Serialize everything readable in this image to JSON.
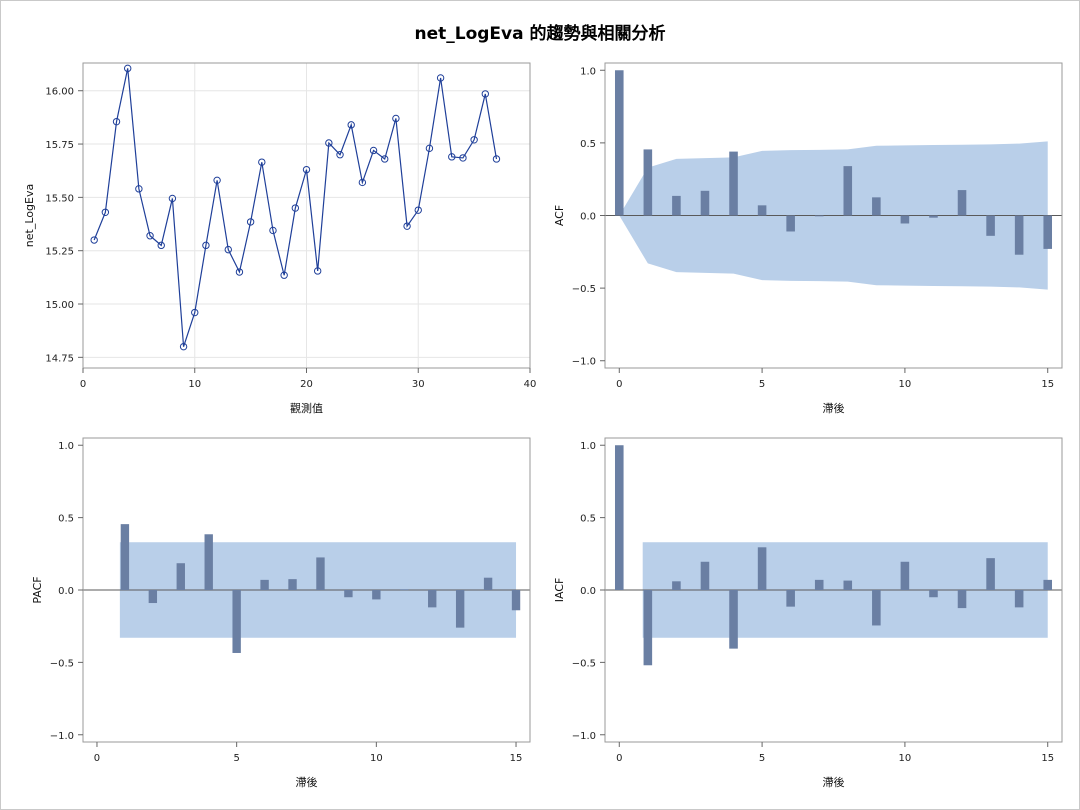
{
  "title": "net_LogEva 的趨勢與相關分析",
  "colors": {
    "line": "#1f3f99",
    "bar": "#6a7fa3",
    "band": "#b9cfe9",
    "frame": "#9a9a9a",
    "grid": "#e6e6e6"
  },
  "chart_data": [
    {
      "id": "trend",
      "type": "line",
      "xlabel": "觀測值",
      "ylabel": "net_LogEva",
      "xlim": [
        0,
        40
      ],
      "ylim": [
        14.7,
        16.13
      ],
      "xticks": [
        0,
        10,
        20,
        30,
        40
      ],
      "yticks": [
        14.75,
        15.0,
        15.25,
        15.5,
        15.75,
        16.0
      ],
      "ytick_labels": [
        "14.75",
        "15.00",
        "15.25",
        "15.50",
        "15.75",
        "16.00"
      ],
      "grid": true,
      "x": [
        1,
        2,
        3,
        4,
        5,
        6,
        7,
        8,
        9,
        10,
        11,
        12,
        13,
        14,
        15,
        16,
        17,
        18,
        19,
        20,
        21,
        22,
        23,
        24,
        25,
        26,
        27,
        28,
        29,
        30,
        31,
        32,
        33,
        34,
        35,
        36,
        37
      ],
      "y": [
        15.3,
        15.43,
        15.855,
        16.105,
        15.54,
        15.32,
        15.275,
        15.495,
        14.8,
        14.96,
        15.275,
        15.58,
        15.255,
        15.15,
        15.385,
        15.665,
        15.345,
        15.135,
        15.45,
        15.63,
        15.155,
        15.755,
        15.7,
        15.84,
        15.57,
        15.72,
        15.68,
        15.87,
        15.365,
        15.44,
        15.73,
        16.06,
        15.69,
        15.685,
        15.77,
        15.985,
        15.68
      ]
    },
    {
      "id": "acf",
      "type": "bar",
      "xlabel": "滯後",
      "ylabel": "ACF",
      "xlim": [
        -0.5,
        15.5
      ],
      "ylim": [
        -1.05,
        1.05
      ],
      "xticks": [
        0,
        5,
        10,
        15
      ],
      "yticks": [
        -1.0,
        -0.5,
        0.0,
        0.5,
        1.0
      ],
      "ytick_labels": [
        "−1.0",
        "−0.5",
        "0.0",
        "0.5",
        "1.0"
      ],
      "band_type": "expanding",
      "band_x": [
        0,
        1,
        2,
        3,
        4,
        5,
        6,
        7,
        8,
        9,
        10,
        11,
        12,
        13,
        14,
        15
      ],
      "band_upper": [
        0.0,
        0.33,
        0.39,
        0.395,
        0.4,
        0.445,
        0.45,
        0.452,
        0.455,
        0.48,
        0.483,
        0.485,
        0.487,
        0.49,
        0.495,
        0.51
      ],
      "lags": [
        0,
        1,
        2,
        3,
        4,
        5,
        6,
        7,
        8,
        9,
        10,
        11,
        12,
        13,
        14,
        15
      ],
      "values": [
        1.0,
        0.455,
        0.135,
        0.17,
        0.44,
        0.07,
        -0.11,
        0.0,
        0.34,
        0.125,
        -0.055,
        -0.015,
        0.175,
        -0.14,
        -0.27,
        -0.23
      ]
    },
    {
      "id": "pacf",
      "type": "bar",
      "xlabel": "滯後",
      "ylabel": "PACF",
      "xlim": [
        -0.5,
        15.5
      ],
      "ylim": [
        -1.05,
        1.05
      ],
      "xticks": [
        0,
        5,
        10,
        15
      ],
      "yticks": [
        -1.0,
        -0.5,
        0.0,
        0.5,
        1.0
      ],
      "ytick_labels": [
        "−1.0",
        "−0.5",
        "0.0",
        "0.5",
        "1.0"
      ],
      "band_type": "constant",
      "band_range": [
        1,
        15
      ],
      "band_upper": 0.33,
      "lags": [
        1,
        2,
        3,
        4,
        5,
        6,
        7,
        8,
        9,
        10,
        11,
        12,
        13,
        14,
        15
      ],
      "values": [
        0.455,
        -0.09,
        0.185,
        0.385,
        -0.435,
        0.07,
        0.075,
        0.225,
        -0.05,
        -0.065,
        0.005,
        -0.12,
        -0.26,
        0.085,
        -0.14
      ]
    },
    {
      "id": "iacf",
      "type": "bar",
      "xlabel": "滯後",
      "ylabel": "IACF",
      "xlim": [
        -0.5,
        15.5
      ],
      "ylim": [
        -1.05,
        1.05
      ],
      "xticks": [
        0,
        5,
        10,
        15
      ],
      "yticks": [
        -1.0,
        -0.5,
        0.0,
        0.5,
        1.0
      ],
      "ytick_labels": [
        "−1.0",
        "−0.5",
        "0.0",
        "0.5",
        "1.0"
      ],
      "band_type": "constant",
      "band_range": [
        1,
        15
      ],
      "band_upper": 0.33,
      "lags": [
        0,
        1,
        2,
        3,
        4,
        5,
        6,
        7,
        8,
        9,
        10,
        11,
        12,
        13,
        14,
        15
      ],
      "values": [
        1.0,
        -0.52,
        0.06,
        0.195,
        -0.405,
        0.295,
        -0.115,
        0.07,
        0.065,
        -0.245,
        0.195,
        -0.05,
        -0.125,
        0.22,
        -0.12,
        0.07
      ]
    }
  ]
}
